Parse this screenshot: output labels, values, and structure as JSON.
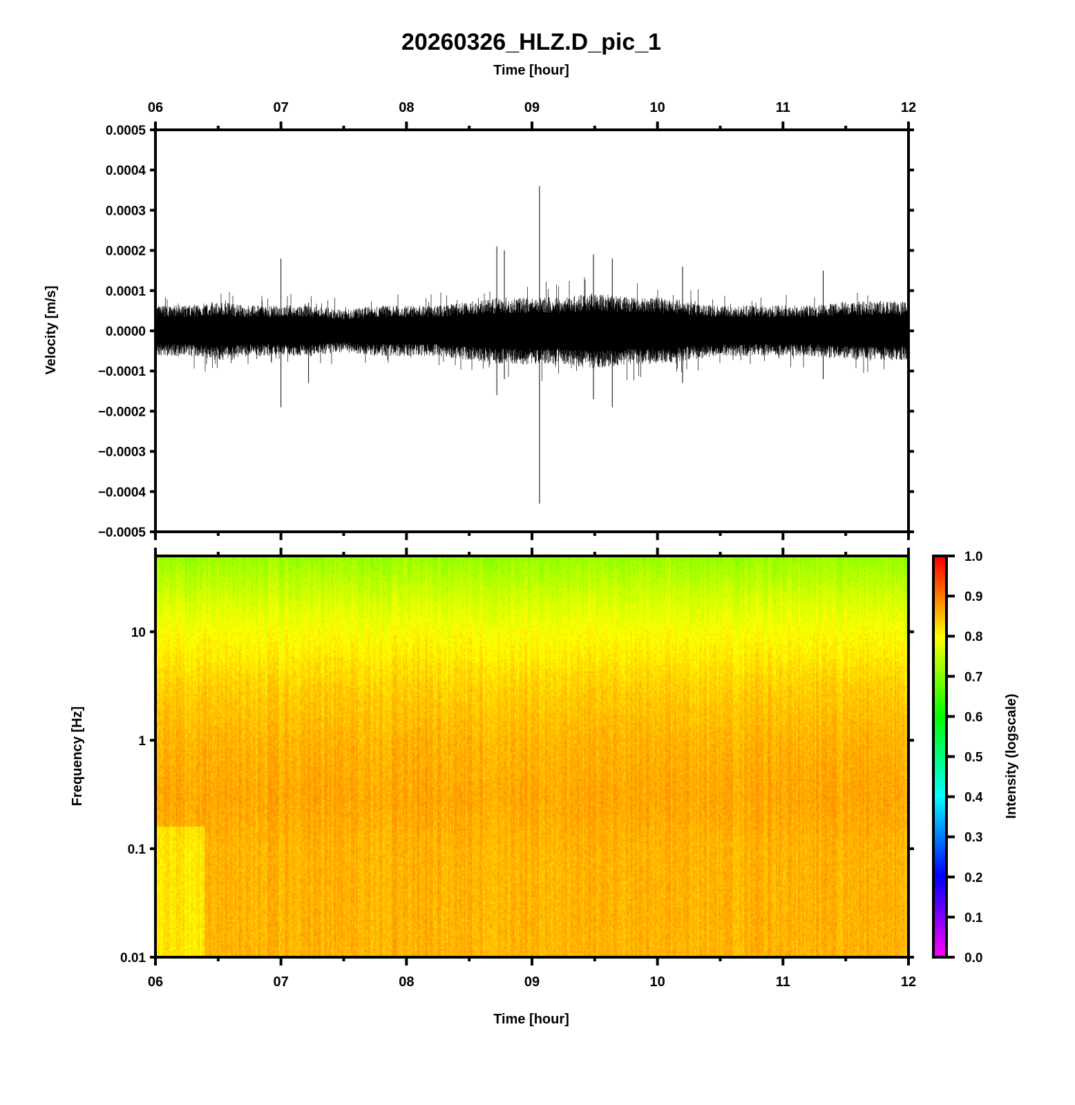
{
  "chart_data": [
    {
      "type": "line",
      "title": "20260326_HLZ.D_pic_1",
      "xlabel_top": "Time [hour]",
      "ylabel": "Velocity [m/s]",
      "xlim": [
        6,
        12
      ],
      "ylim": [
        -0.0005,
        0.0005
      ],
      "x_ticks": [
        "06",
        "07",
        "08",
        "09",
        "10",
        "11",
        "12"
      ],
      "y_ticks": [
        "0.0005",
        "0.0004",
        "0.0003",
        "0.0002",
        "0.0001",
        "0.0000",
        "−0.0001",
        "−0.0002",
        "−0.0003",
        "−0.0004",
        "−0.0005"
      ],
      "envelope_hours": [
        6.0,
        6.25,
        6.5,
        6.75,
        7.0,
        7.25,
        7.5,
        7.75,
        8.0,
        8.25,
        8.5,
        8.75,
        9.0,
        9.25,
        9.5,
        9.75,
        10.0,
        10.25,
        10.5,
        10.75,
        11.0,
        11.25,
        11.5,
        11.75,
        12.0
      ],
      "envelope_amplitude": [
        6e-05,
        6e-05,
        7e-05,
        6e-05,
        6e-05,
        6e-05,
        5e-05,
        6e-05,
        6e-05,
        6e-05,
        7e-05,
        8e-05,
        8e-05,
        8e-05,
        9e-05,
        8e-05,
        8e-05,
        7e-05,
        6e-05,
        6e-05,
        6e-05,
        6e-05,
        7e-05,
        7e-05,
        7e-05
      ],
      "spikes": [
        {
          "hour": 7.0,
          "max": 0.00018,
          "min": -0.00019
        },
        {
          "hour": 7.22,
          "max": 7e-05,
          "min": -0.00013
        },
        {
          "hour": 8.72,
          "max": 0.00021,
          "min": -0.00016
        },
        {
          "hour": 8.78,
          "max": 0.0002,
          "min": -0.00012
        },
        {
          "hour": 9.06,
          "max": 0.00036,
          "min": -0.00043
        },
        {
          "hour": 9.49,
          "max": 0.00019,
          "min": -0.00017
        },
        {
          "hour": 9.64,
          "max": 0.00018,
          "min": -0.00019
        },
        {
          "hour": 10.2,
          "max": 0.00016,
          "min": -0.00013
        },
        {
          "hour": 11.32,
          "max": 0.00015,
          "min": -0.00012
        }
      ]
    },
    {
      "type": "heatmap",
      "xlabel": "Time [hour]",
      "ylabel": "Frequency [Hz]",
      "xlim": [
        6,
        12
      ],
      "ylim": [
        0.01,
        50
      ],
      "yscale": "log",
      "x_ticks": [
        "06",
        "07",
        "08",
        "09",
        "10",
        "11",
        "12"
      ],
      "y_ticks": [
        "10",
        "1",
        "0.1",
        "0.01"
      ],
      "intensity_profile_freq_hz": [
        0.01,
        0.1,
        0.3,
        1,
        3,
        10,
        20,
        50
      ],
      "intensity_profile_values": [
        0.86,
        0.86,
        0.87,
        0.86,
        0.84,
        0.8,
        0.77,
        0.72
      ],
      "colorbar": {
        "label": "Intensity (logscale)",
        "range": [
          0,
          1
        ],
        "ticks": [
          "1.0",
          "0.9",
          "0.8",
          "0.7",
          "0.6",
          "0.5",
          "0.4",
          "0.3",
          "0.2",
          "0.1",
          "0.0"
        ],
        "colors": [
          "#ff00ff",
          "#0000ff",
          "#00ffff",
          "#00ff00",
          "#ffff00",
          "#ff0000"
        ]
      }
    }
  ]
}
